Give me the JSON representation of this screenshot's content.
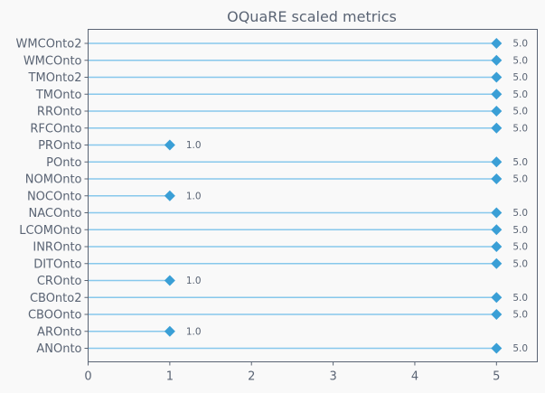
{
  "chart_data": {
    "type": "lollipop",
    "orientation": "horizontal",
    "title": "OQuaRE scaled metrics",
    "xlabel": "",
    "ylabel": "",
    "xlim": [
      0,
      5.5
    ],
    "xticks": [
      0,
      1,
      2,
      3,
      4,
      5
    ],
    "grid": false,
    "categories": [
      "WMCOnto2",
      "WMCOnto",
      "TMOnto2",
      "TMOnto",
      "RROnto",
      "RFCOnto",
      "PROnto",
      "POnto",
      "NOMOnto",
      "NOCOnto",
      "NACOnto",
      "LCOMOnto",
      "INROnto",
      "DITOnto",
      "CROnto",
      "CBOnto2",
      "CBOOnto",
      "AROnto",
      "ANOnto"
    ],
    "values": [
      5.0,
      5.0,
      5.0,
      5.0,
      5.0,
      5.0,
      1.0,
      5.0,
      5.0,
      1.0,
      5.0,
      5.0,
      5.0,
      5.0,
      1.0,
      5.0,
      5.0,
      1.0,
      5.0
    ],
    "value_labels": [
      "5.0",
      "5.0",
      "5.0",
      "5.0",
      "5.0",
      "5.0",
      "1.0",
      "5.0",
      "5.0",
      "1.0",
      "5.0",
      "5.0",
      "5.0",
      "5.0",
      "1.0",
      "5.0",
      "5.0",
      "1.0",
      "5.0"
    ],
    "colors": {
      "stem": "#87c8ec",
      "marker": "#3a9fd6",
      "axis": "#5a6474",
      "text": "#5a6474"
    }
  }
}
